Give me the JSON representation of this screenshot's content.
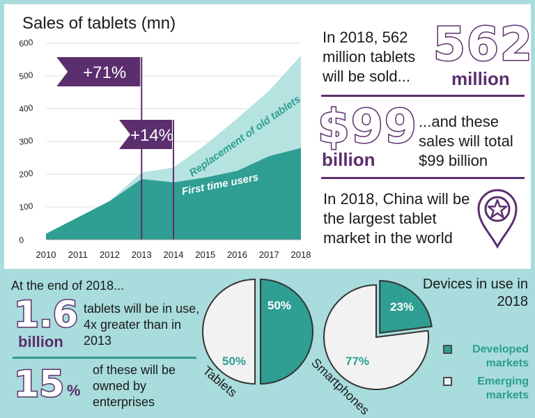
{
  "chart_data": [
    {
      "type": "area",
      "title": "Sales of tablets (mn)",
      "x": [
        "2010",
        "2011",
        "2012",
        "2013",
        "2014",
        "2015",
        "2016",
        "2017",
        "2018"
      ],
      "ylim": [
        0,
        600
      ],
      "yticks": [
        0,
        100,
        200,
        300,
        400,
        500,
        600
      ],
      "series": [
        {
          "name": "First time users",
          "values": [
            18,
            68,
            118,
            185,
            175,
            190,
            210,
            255,
            280
          ]
        },
        {
          "name": "Replacement of old tablets",
          "values": [
            0,
            0,
            0,
            20,
            45,
            100,
            160,
            200,
            282
          ]
        }
      ],
      "totals": [
        18,
        68,
        118,
        205,
        220,
        290,
        370,
        455,
        562
      ],
      "annotations": [
        {
          "label": "+71%",
          "x": "2013"
        },
        {
          "label": "+14%",
          "x": "2014"
        }
      ]
    },
    {
      "type": "pie",
      "title": "Tablets",
      "slices": [
        {
          "name": "Developed markets",
          "value": 50,
          "label": "50%"
        },
        {
          "name": "Emerging markets",
          "value": 50,
          "label": "50%"
        }
      ]
    },
    {
      "type": "pie",
      "title": "Smartphones",
      "slices": [
        {
          "name": "Developed markets",
          "value": 23,
          "label": "23%"
        },
        {
          "name": "Emerging markets",
          "value": 77,
          "label": "77%"
        }
      ]
    }
  ],
  "colors": {
    "first_time": "#2f9e93",
    "replacement": "#b5e3df",
    "purple": "#5b2e6d",
    "teal_bg": "#a9dcdc",
    "emerging": "#f2f2f2"
  },
  "stats": {
    "s1_text": "In 2018, 562 million tablets will be sold...",
    "s1_big": "562",
    "s1_unit": "million",
    "s2_big": "$99",
    "s2_unit": "billion",
    "s2_text": "...and these sales will total $99 billion",
    "s3_text": "In 2018, China will be the largest tablet market in the world"
  },
  "bottom": {
    "heading": "At the end of 2018...",
    "big1": "1.6",
    "unit1": "billion",
    "text1": "tablets will be in use, 4x greater than in 2013",
    "big2": "15",
    "unit2": "%",
    "text2": "of these will be owned by enterprises",
    "devices_title": "Devices in use in 2018",
    "legend_developed": "Developed markets",
    "legend_emerging": "Emerging markets"
  }
}
